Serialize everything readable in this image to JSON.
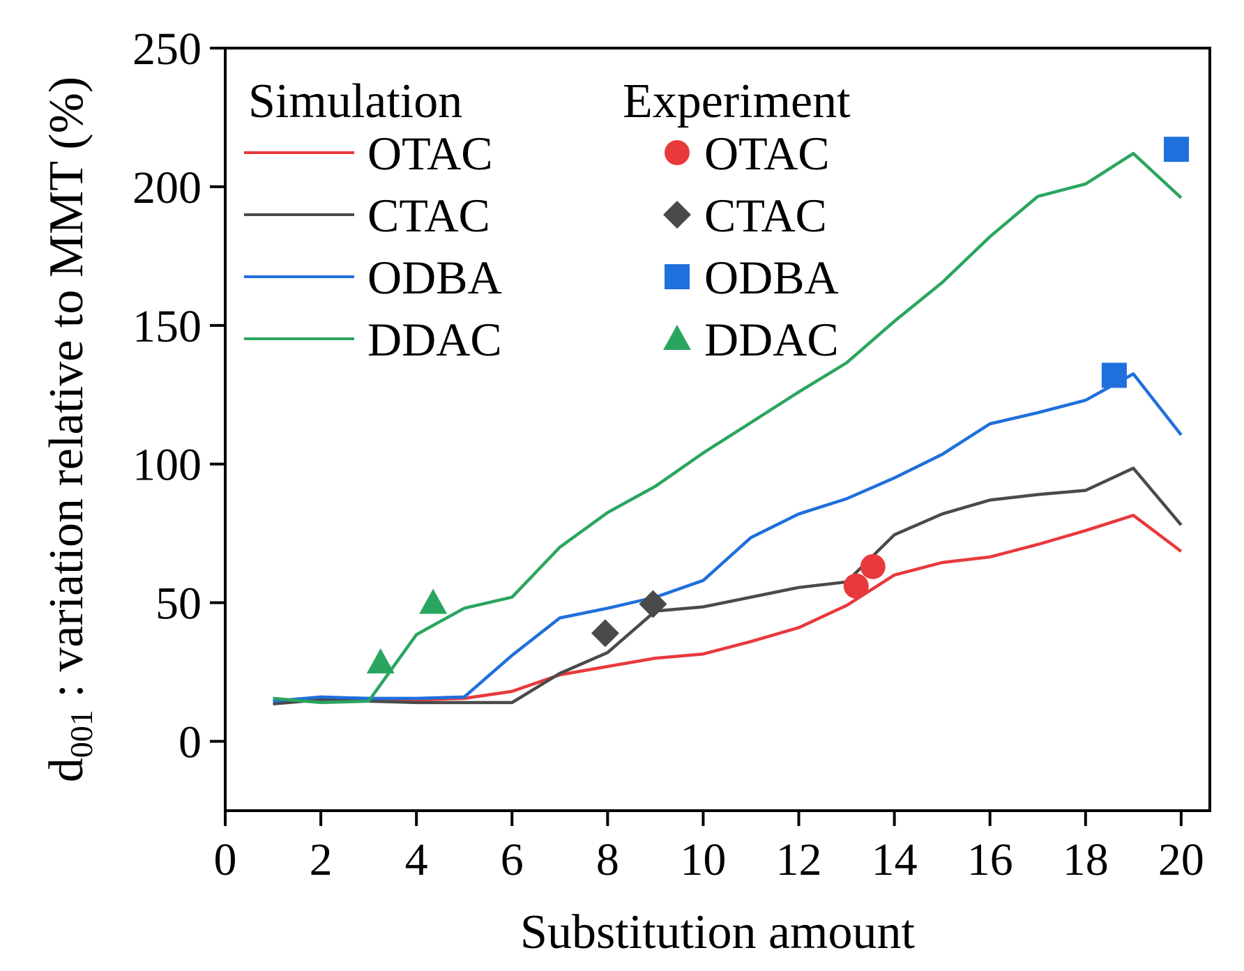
{
  "chart_data": {
    "type": "line",
    "title": "",
    "xlabel": "Substitution amount",
    "ylabel_main": "d",
    "ylabel_sub": "001",
    "ylabel_rest": " : variation relative to MMT (%)",
    "xlim": [
      0,
      20.6
    ],
    "ylim": [
      -25,
      250
    ],
    "xticks": [
      0,
      2,
      4,
      6,
      8,
      10,
      12,
      14,
      16,
      18,
      20
    ],
    "yticks": [
      0,
      50,
      100,
      150,
      200,
      250
    ],
    "legend": {
      "simulation_title": "Simulation",
      "experiment_title": "Experiment",
      "placement": "top-left"
    },
    "simulation_x": [
      1,
      2,
      3,
      4,
      5,
      6,
      7,
      8,
      9,
      10,
      11,
      12,
      13,
      14,
      15,
      16,
      17,
      18,
      19,
      20
    ],
    "series": [
      {
        "name": "OTAC",
        "color": "#e8393c",
        "values": [
          14.5,
          15,
          15,
          15,
          15.5,
          18,
          24,
          27,
          30,
          31.5,
          36,
          41,
          49,
          60,
          64.5,
          66.5,
          71,
          76,
          81.5,
          68.5
        ],
        "experiment": {
          "marker": "circle",
          "points": [
            [
              13.2,
              56
            ],
            [
              13.55,
              63
            ]
          ]
        }
      },
      {
        "name": "CTAC",
        "color": "#4a4a4a",
        "values": [
          13.5,
          15,
          14.5,
          14,
          14,
          14,
          24.5,
          32,
          47,
          48.5,
          52,
          55.5,
          57.5,
          74.5,
          82,
          87,
          89,
          90.5,
          98.5,
          78
        ],
        "experiment": {
          "marker": "diamond",
          "points": [
            [
              7.95,
              39
            ],
            [
              8.95,
              49.5
            ]
          ]
        }
      },
      {
        "name": "ODBA",
        "color": "#1f6fdc",
        "values": [
          14.5,
          16,
          15.5,
          15.5,
          16,
          31,
          44.5,
          48,
          52,
          58,
          73.5,
          82,
          87.5,
          95,
          103.5,
          114.5,
          118.5,
          123,
          132.5,
          110.5
        ],
        "experiment": {
          "marker": "square",
          "points": [
            [
              18.6,
              132
            ],
            [
              19.9,
              213.5
            ]
          ]
        }
      },
      {
        "name": "DDAC",
        "color": "#2aa55f",
        "values": [
          15.5,
          14,
          14.5,
          38.5,
          48,
          52,
          70,
          82.5,
          92,
          104,
          115,
          126,
          136.5,
          151.5,
          165.5,
          182,
          196.5,
          201,
          212,
          196
        ],
        "experiment": {
          "marker": "triangle",
          "points": [
            [
              3.25,
              28.5
            ],
            [
              4.35,
              50
            ]
          ]
        }
      }
    ]
  }
}
